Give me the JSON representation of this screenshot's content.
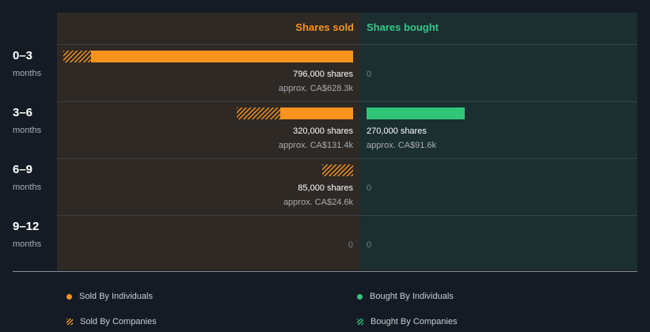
{
  "chart_data": {
    "type": "bar",
    "orientation": "horizontal-diverging",
    "series_headers": {
      "sold": "Shares sold",
      "bought": "Shares bought"
    },
    "colors": {
      "sold": "#f7931e",
      "bought": "#2fc67a",
      "sold_header": "#f7931e",
      "bought_header": "#35c98a"
    },
    "max_shares": 796000,
    "periods": [
      {
        "label": "0–3",
        "sub": "months",
        "sold": {
          "total": 796000,
          "individuals": 720000,
          "companies": 76000,
          "shares_label": "796,000 shares",
          "approx_label": "approx. CA$628.3k",
          "zero_label": ""
        },
        "bought": {
          "total": 0,
          "individuals": 0,
          "companies": 0,
          "shares_label": "",
          "approx_label": "",
          "zero_label": "0"
        }
      },
      {
        "label": "3–6",
        "sub": "months",
        "sold": {
          "total": 320000,
          "individuals": 200000,
          "companies": 120000,
          "shares_label": "320,000 shares",
          "approx_label": "approx. CA$131.4k",
          "zero_label": ""
        },
        "bought": {
          "total": 270000,
          "individuals": 270000,
          "companies": 0,
          "shares_label": "270,000 shares",
          "approx_label": "approx. CA$91.6k",
          "zero_label": ""
        }
      },
      {
        "label": "6–9",
        "sub": "months",
        "sold": {
          "total": 85000,
          "individuals": 0,
          "companies": 85000,
          "shares_label": "85,000 shares",
          "approx_label": "approx. CA$24.6k",
          "zero_label": ""
        },
        "bought": {
          "total": 0,
          "individuals": 0,
          "companies": 0,
          "shares_label": "",
          "approx_label": "",
          "zero_label": "0"
        }
      },
      {
        "label": "9–12",
        "sub": "months",
        "sold": {
          "total": 0,
          "individuals": 0,
          "companies": 0,
          "shares_label": "",
          "approx_label": "",
          "zero_label": "0"
        },
        "bought": {
          "total": 0,
          "individuals": 0,
          "companies": 0,
          "shares_label": "",
          "approx_label": "",
          "zero_label": "0"
        }
      }
    ],
    "legend": {
      "sold_individuals": "Sold By Individuals",
      "sold_companies": "Sold By Companies",
      "bought_individuals": "Bought By Individuals",
      "bought_companies": "Bought By Companies"
    }
  }
}
